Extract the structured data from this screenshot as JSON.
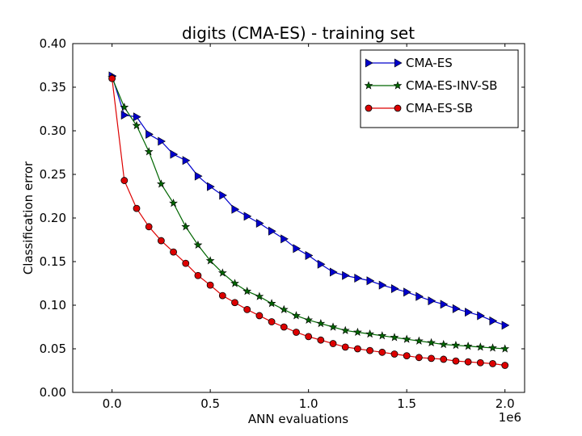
{
  "chart_data": {
    "type": "line",
    "title": "digits (CMA-ES) - training set",
    "xlabel": "ANN evaluations",
    "ylabel": "Classification error",
    "x_offset_label": "1e6",
    "xlim": [
      -0.2,
      2.1
    ],
    "ylim": [
      0.0,
      0.4
    ],
    "xticks": [
      0.0,
      0.5,
      1.0,
      1.5,
      2.0
    ],
    "xtick_labels": [
      "0.0",
      "0.5",
      "1.0",
      "1.5",
      "2.0"
    ],
    "yticks": [
      0.0,
      0.05,
      0.1,
      0.15,
      0.2,
      0.25,
      0.3,
      0.35,
      0.4
    ],
    "ytick_labels": [
      "0.00",
      "0.05",
      "0.10",
      "0.15",
      "0.20",
      "0.25",
      "0.30",
      "0.35",
      "0.40"
    ],
    "grid": false,
    "legend_position": "top-right",
    "x": [
      0.0,
      0.0625,
      0.125,
      0.1875,
      0.25,
      0.3125,
      0.375,
      0.4375,
      0.5,
      0.5625,
      0.625,
      0.6875,
      0.75,
      0.8125,
      0.875,
      0.9375,
      1.0,
      1.0625,
      1.125,
      1.1875,
      1.25,
      1.3125,
      1.375,
      1.4375,
      1.5,
      1.5625,
      1.625,
      1.6875,
      1.75,
      1.8125,
      1.875,
      1.9375,
      2.0
    ],
    "series": [
      {
        "name": "CMA-ES",
        "color": "#0000cc",
        "marker": "triangle-right",
        "values": [
          0.363,
          0.318,
          0.316,
          0.296,
          0.288,
          0.273,
          0.266,
          0.248,
          0.236,
          0.226,
          0.21,
          0.202,
          0.194,
          0.185,
          0.176,
          0.165,
          0.157,
          0.147,
          0.138,
          0.134,
          0.131,
          0.128,
          0.123,
          0.119,
          0.115,
          0.11,
          0.105,
          0.101,
          0.096,
          0.092,
          0.088,
          0.082,
          0.077
        ]
      },
      {
        "name": "CMA-ES-INV-SB",
        "color": "#006600",
        "marker": "star",
        "values": [
          0.361,
          0.327,
          0.306,
          0.276,
          0.239,
          0.217,
          0.19,
          0.169,
          0.151,
          0.137,
          0.125,
          0.116,
          0.11,
          0.102,
          0.095,
          0.088,
          0.083,
          0.079,
          0.075,
          0.071,
          0.069,
          0.067,
          0.065,
          0.063,
          0.061,
          0.059,
          0.057,
          0.055,
          0.054,
          0.053,
          0.052,
          0.051,
          0.05
        ]
      },
      {
        "name": "CMA-ES-SB",
        "color": "#dd0000",
        "marker": "circle",
        "values": [
          0.36,
          0.243,
          0.211,
          0.19,
          0.174,
          0.161,
          0.148,
          0.134,
          0.123,
          0.111,
          0.103,
          0.095,
          0.088,
          0.081,
          0.075,
          0.069,
          0.064,
          0.06,
          0.056,
          0.052,
          0.05,
          0.048,
          0.046,
          0.044,
          0.042,
          0.04,
          0.039,
          0.038,
          0.036,
          0.035,
          0.034,
          0.033,
          0.031
        ]
      }
    ]
  }
}
